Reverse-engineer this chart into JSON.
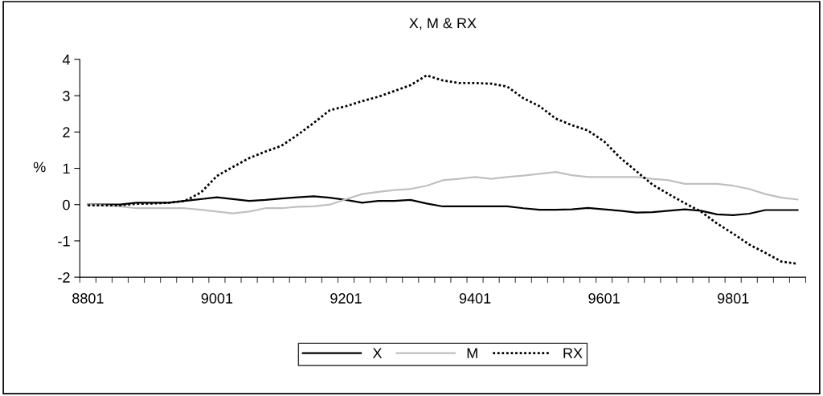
{
  "chart_data": {
    "type": "line",
    "title": "X, M & RX",
    "ylabel": "%",
    "categories": [
      "8801",
      null,
      null,
      null,
      null,
      null,
      null,
      null,
      "9001",
      null,
      null,
      null,
      null,
      null,
      null,
      null,
      "9201",
      null,
      null,
      null,
      null,
      null,
      null,
      null,
      "9401",
      null,
      null,
      null,
      null,
      null,
      null,
      null,
      "9601",
      null,
      null,
      null,
      null,
      null,
      null,
      null,
      "9801",
      null,
      null,
      null,
      null
    ],
    "series": [
      {
        "name": "X",
        "color": "#000000",
        "line_style": "solid",
        "values": [
          0,
          0,
          0,
          0.05,
          0.05,
          0.05,
          0.1,
          0.15,
          0.2,
          0.15,
          0.1,
          0.13,
          0.17,
          0.2,
          0.23,
          0.19,
          0.13,
          0.05,
          0.1,
          0.1,
          0.13,
          0.03,
          -0.05,
          -0.05,
          -0.05,
          -0.05,
          -0.05,
          -0.1,
          -0.14,
          -0.14,
          -0.13,
          -0.09,
          -0.13,
          -0.17,
          -0.22,
          -0.21,
          -0.17,
          -0.13,
          -0.17,
          -0.27,
          -0.29,
          -0.25,
          -0.15,
          -0.15,
          -0.15
        ]
      },
      {
        "name": "M",
        "color": "#c0c0c0",
        "line_style": "solid",
        "values": [
          0,
          -0.02,
          -0.05,
          -0.1,
          -0.1,
          -0.1,
          -0.1,
          -0.14,
          -0.19,
          -0.24,
          -0.19,
          -0.1,
          -0.1,
          -0.06,
          -0.05,
          0,
          0.15,
          0.29,
          0.35,
          0.4,
          0.43,
          0.52,
          0.67,
          0.71,
          0.76,
          0.71,
          0.76,
          0.8,
          0.85,
          0.9,
          0.81,
          0.76,
          0.76,
          0.76,
          0.76,
          0.71,
          0.67,
          0.57,
          0.57,
          0.57,
          0.52,
          0.43,
          0.29,
          0.19,
          0.14
        ]
      },
      {
        "name": "RX",
        "color": "#000000",
        "line_style": "dotted",
        "values": [
          -0.02,
          -0.02,
          -0.02,
          0.02,
          0.03,
          0.05,
          0.1,
          0.33,
          0.79,
          1.04,
          1.28,
          1.46,
          1.62,
          1.92,
          2.25,
          2.6,
          2.71,
          2.85,
          2.97,
          3.13,
          3.29,
          3.56,
          3.42,
          3.35,
          3.35,
          3.33,
          3.25,
          2.93,
          2.71,
          2.37,
          2.19,
          2.04,
          1.74,
          1.29,
          0.92,
          0.55,
          0.29,
          0.04,
          -0.19,
          -0.52,
          -0.8,
          -1.1,
          -1.33,
          -1.57,
          -1.63
        ]
      }
    ],
    "ylim": [
      -2,
      4
    ],
    "yticks": [
      -2,
      -1,
      0,
      1,
      2,
      3,
      4
    ],
    "grid": false,
    "legend": "bottom",
    "marker": "none"
  }
}
